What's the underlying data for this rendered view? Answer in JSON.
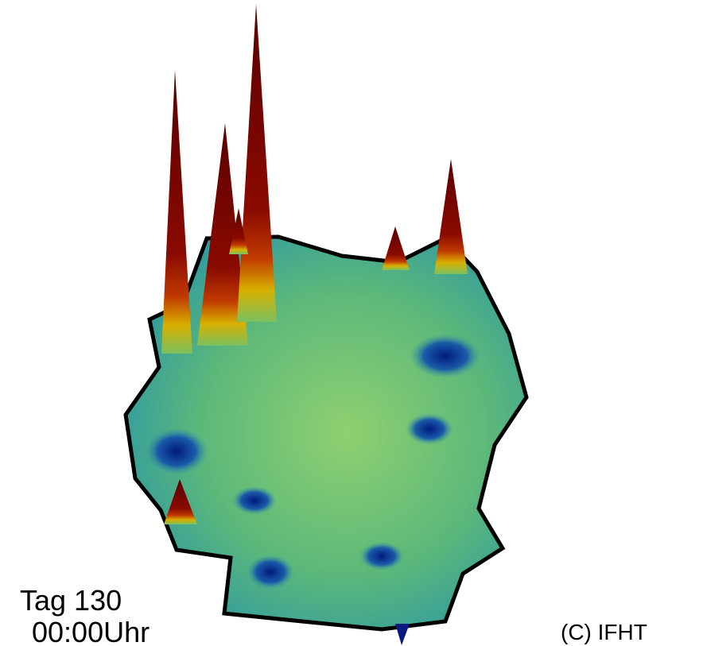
{
  "caption": {
    "day": "Tag 130",
    "time": "00:00Uhr"
  },
  "copyright": "(C) IFHT"
}
